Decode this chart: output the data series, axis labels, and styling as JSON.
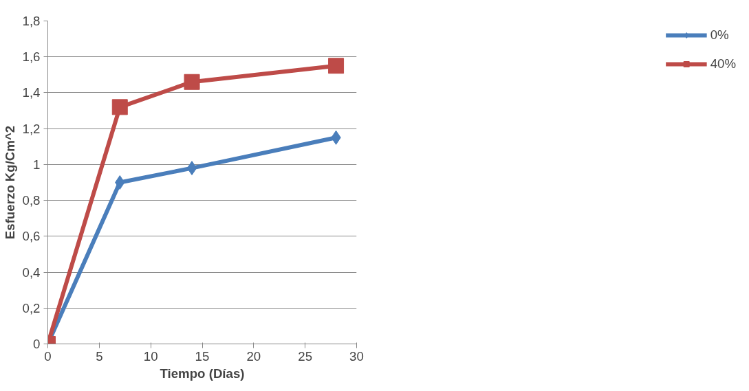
{
  "chart_data": {
    "type": "line",
    "xlabel": "Tiempo (Días)",
    "ylabel": "Esfuerzo Kg/Cm^2",
    "x": [
      0,
      7,
      14,
      28
    ],
    "series": [
      {
        "name": "0%",
        "color": "#4a7ebb",
        "marker": "diamond",
        "values": [
          0,
          0.9,
          0.98,
          1.15
        ]
      },
      {
        "name": "40%",
        "color": "#be4b48",
        "marker": "square",
        "values": [
          0,
          1.32,
          1.46,
          1.55
        ]
      }
    ],
    "xlim": [
      0,
      30
    ],
    "xticks": [
      0,
      5,
      10,
      15,
      20,
      25,
      30
    ],
    "ylim": [
      0,
      1.8
    ],
    "yticks": [
      0,
      {
        "value": 0.2,
        "label": "0,2"
      },
      {
        "value": 0.4,
        "label": "0,4"
      },
      {
        "value": 0.6,
        "label": "0,6"
      },
      {
        "value": 0.8,
        "label": "0,8"
      },
      1,
      {
        "value": 1.2,
        "label": "1,2"
      },
      {
        "value": 1.4,
        "label": "1,4"
      },
      {
        "value": 1.6,
        "label": "1,6"
      },
      {
        "value": 1.8,
        "label": "1,8"
      }
    ],
    "grid": "y",
    "legend": "right"
  }
}
